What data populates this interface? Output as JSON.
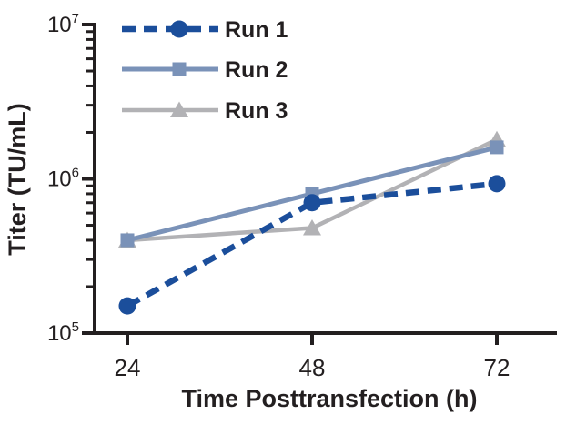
{
  "figure": {
    "background_color": "#ffffff",
    "axis_color": "#231f20",
    "text_color": "#231f20"
  },
  "chart_data": {
    "type": "line",
    "title": "",
    "xlabel": "Time Posttransfection (h)",
    "ylabel": "Titer (TU/mL)",
    "x": [
      24,
      48,
      72
    ],
    "x_tick_labels": [
      "24",
      "48",
      "72"
    ],
    "y_scale": "log10",
    "ylim": [
      100000,
      10000000
    ],
    "y_ticks": [
      {
        "base": "10",
        "exp": "5",
        "value": 100000
      },
      {
        "base": "10",
        "exp": "6",
        "value": 1000000
      },
      {
        "base": "10",
        "exp": "7",
        "value": 10000000
      }
    ],
    "grid": false,
    "legend_position": "top-left-inside",
    "series": [
      {
        "name": "Run 1",
        "color": "#1b4e9b",
        "marker": "circle",
        "line_style": "dashed",
        "values": [
          150000,
          700000,
          930000
        ]
      },
      {
        "name": "Run 2",
        "color": "#7a92b8",
        "marker": "square",
        "line_style": "solid",
        "values": [
          400000,
          800000,
          1600000
        ]
      },
      {
        "name": "Run 3",
        "color": "#b2b2b5",
        "marker": "triangle",
        "line_style": "solid",
        "values": [
          400000,
          480000,
          1800000
        ]
      }
    ]
  }
}
